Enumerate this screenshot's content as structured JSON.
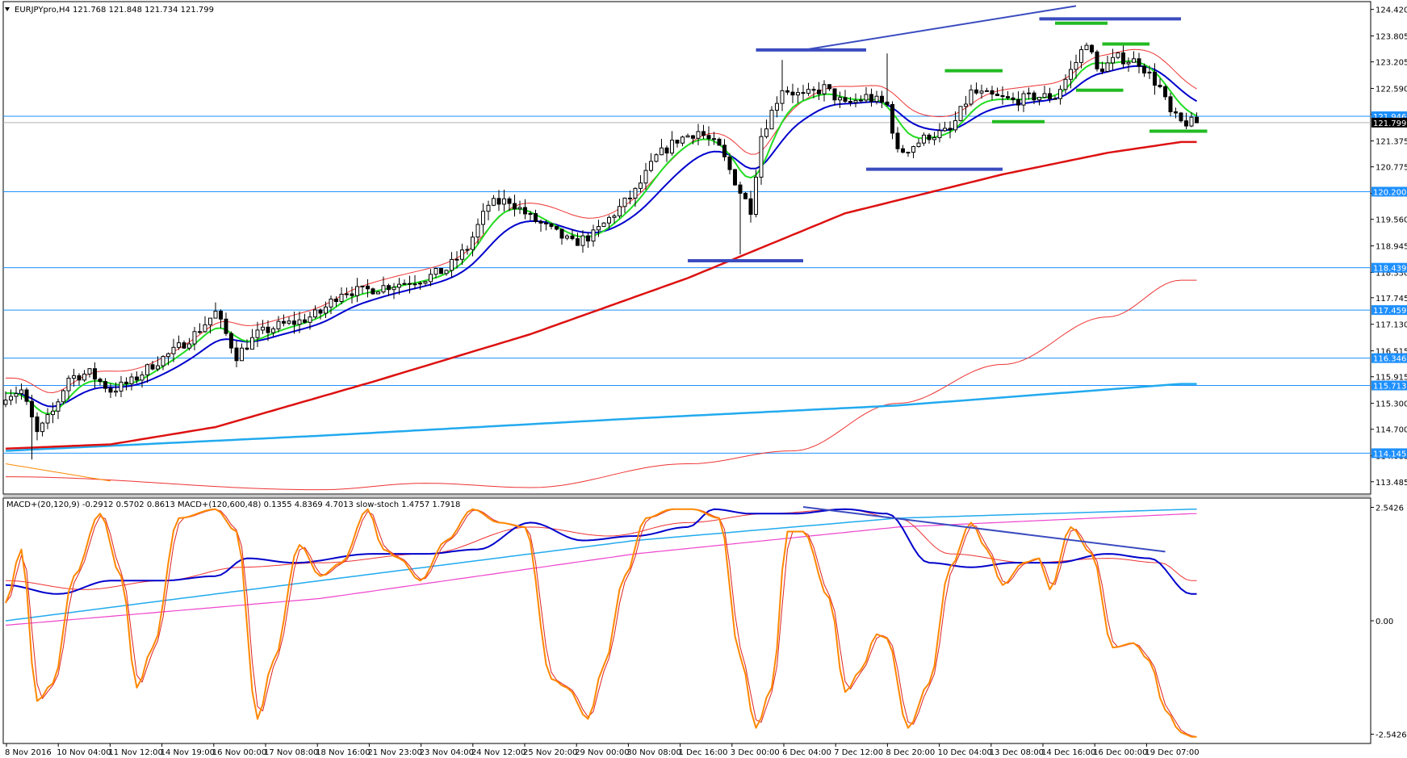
{
  "chart_data": [
    {
      "type": "candlestick",
      "title": "EURJPYpro,H4  121.768 121.848 121.734 121.799",
      "ylim": [
        113.2,
        124.6
      ],
      "y_ticks": [
        "124.420",
        "123.805",
        "123.205",
        "122.590",
        "121.990",
        "121.375",
        "120.775",
        "120.160",
        "119.560",
        "118.945",
        "118.330",
        "117.745",
        "117.130",
        "116.515",
        "115.915",
        "115.300",
        "114.700",
        "114.085",
        "113.485"
      ],
      "current_price": "121.799",
      "levels": [
        {
          "price": 121.946,
          "label": "121.946"
        },
        {
          "price": 120.2,
          "label": "120.200"
        },
        {
          "price": 118.439,
          "label": "118.439"
        },
        {
          "price": 117.459,
          "label": "117.459"
        },
        {
          "price": 116.346,
          "label": "116.346"
        },
        {
          "price": 115.713,
          "label": "115.713"
        },
        {
          "price": 114.145,
          "label": "114.145"
        }
      ],
      "anchors": [
        [
          0,
          115.5
        ],
        [
          3,
          115.6
        ],
        [
          6,
          114.6
        ],
        [
          9,
          115.1
        ],
        [
          12,
          115.9
        ],
        [
          16,
          116.0
        ],
        [
          20,
          115.6
        ],
        [
          24,
          115.8
        ],
        [
          28,
          116.2
        ],
        [
          32,
          116.5
        ],
        [
          36,
          116.9
        ],
        [
          40,
          117.4
        ],
        [
          44,
          116.4
        ],
        [
          48,
          116.9
        ],
        [
          52,
          117.1
        ],
        [
          56,
          117.2
        ],
        [
          60,
          117.4
        ],
        [
          64,
          117.9
        ],
        [
          68,
          117.9
        ],
        [
          72,
          118.0
        ],
        [
          76,
          118.1
        ],
        [
          80,
          118.2
        ],
        [
          84,
          118.4
        ],
        [
          88,
          118.9
        ],
        [
          92,
          119.9
        ],
        [
          96,
          120.0
        ],
        [
          100,
          119.6
        ],
        [
          104,
          119.3
        ],
        [
          108,
          119.0
        ],
        [
          112,
          119.2
        ],
        [
          116,
          119.7
        ],
        [
          120,
          120.2
        ],
        [
          124,
          121.0
        ],
        [
          128,
          121.4
        ],
        [
          132,
          121.6
        ],
        [
          136,
          121.2
        ],
        [
          140,
          120.2
        ],
        [
          142,
          119.8
        ],
        [
          144,
          121.5
        ],
        [
          148,
          122.6
        ],
        [
          152,
          122.4
        ],
        [
          156,
          122.6
        ],
        [
          160,
          122.2
        ],
        [
          164,
          122.4
        ],
        [
          168,
          122.2
        ],
        [
          170,
          121.1
        ],
        [
          172,
          121.2
        ],
        [
          176,
          121.5
        ],
        [
          180,
          121.6
        ],
        [
          184,
          122.5
        ],
        [
          188,
          122.4
        ],
        [
          192,
          122.3
        ],
        [
          196,
          122.4
        ],
        [
          200,
          122.4
        ],
        [
          204,
          123.2
        ],
        [
          206,
          123.7
        ],
        [
          208,
          123.0
        ],
        [
          212,
          123.3
        ],
        [
          216,
          123.2
        ],
        [
          220,
          122.6
        ],
        [
          222,
          122.0
        ],
        [
          224,
          121.8
        ]
      ],
      "annotations": [
        {
          "type": "hline",
          "price": 123.48,
          "from": 143,
          "to": 164,
          "color": "#3b4cc0"
        },
        {
          "type": "hline",
          "price": 120.72,
          "from": 164,
          "to": 190,
          "color": "#3b4cc0"
        },
        {
          "type": "hline",
          "price": 118.6,
          "from": 130,
          "to": 152,
          "color": "#3b4cc0"
        },
        {
          "type": "hline",
          "price": 124.2,
          "from": 197,
          "to": 224,
          "color": "#3b4cc0"
        },
        {
          "type": "trend",
          "from": [
            153,
            123.5
          ],
          "to": [
            204,
            124.5
          ],
          "color": "#3b4cc0"
        },
        {
          "type": "hline",
          "price": 123.0,
          "from": 179,
          "to": 190,
          "color": "#22bb22"
        },
        {
          "type": "hline",
          "price": 121.82,
          "from": 188,
          "to": 198,
          "color": "#22bb22"
        },
        {
          "type": "hline",
          "price": 124.1,
          "from": 200,
          "to": 210,
          "color": "#22bb22"
        },
        {
          "type": "hline",
          "price": 123.62,
          "from": 209,
          "to": 218,
          "color": "#22bb22"
        },
        {
          "type": "hline",
          "price": 122.55,
          "from": 204,
          "to": 213,
          "color": "#22bb22"
        },
        {
          "type": "hline",
          "price": 121.6,
          "from": 218,
          "to": 229,
          "color": "#22bb22"
        }
      ],
      "x_ticks": [
        "8 Nov 2016",
        "10 Nov 04:00",
        "11 Nov 12:00",
        "14 Nov 19:00",
        "16 Nov 00:00",
        "17 Nov 08:00",
        "18 Nov 16:00",
        "21 Nov 23:00",
        "23 Nov 04:00",
        "24 Nov 12:00",
        "25 Nov 20:00",
        "29 Nov 00:00",
        "30 Nov 08:00",
        "1 Dec 16:00",
        "3 Dec 00:00",
        "6 Dec 04:00",
        "7 Dec 12:00",
        "8 Dec 20:00",
        "10 Dec 04:00",
        "13 Dec 08:00",
        "14 Dec 16:00",
        "16 Dec 00:00",
        "19 Dec 07:00"
      ],
      "colors": {
        "ema_fast": "#22dd22",
        "ema_mid": "#0000cc",
        "ema_red": "#ee3333",
        "ema_slow": "#dd1111",
        "ema_cyan": "#22aaee",
        "level_line": "#1e90ff",
        "candle": "#000000"
      }
    },
    {
      "type": "line",
      "title": "MACD+(20,120,9) -0.2912 0.5702 0.8613  MACD+(120,600,48) 0.1355 4.8369 4.7013  slow-stoch 1.4757 1.7918",
      "y_ticks": [
        "2.5426",
        "0.00",
        "-2.5426"
      ],
      "ylim": [
        -2.75,
        2.75
      ],
      "stoch_turns": [
        [
          0,
          0.4
        ],
        [
          3,
          1.6
        ],
        [
          6,
          -1.8
        ],
        [
          9,
          -1.4
        ],
        [
          13,
          1.0
        ],
        [
          18,
          2.4
        ],
        [
          22,
          1.0
        ],
        [
          25,
          -1.5
        ],
        [
          28,
          -0.6
        ],
        [
          33,
          2.3
        ],
        [
          40,
          2.5
        ],
        [
          44,
          2.0
        ],
        [
          48,
          -2.2
        ],
        [
          51,
          -0.9
        ],
        [
          56,
          1.7
        ],
        [
          60,
          1.0
        ],
        [
          64,
          1.3
        ],
        [
          69,
          2.5
        ],
        [
          72,
          1.6
        ],
        [
          75,
          1.4
        ],
        [
          79,
          0.9
        ],
        [
          84,
          1.8
        ],
        [
          89,
          2.5
        ],
        [
          94,
          2.2
        ],
        [
          99,
          2.1
        ],
        [
          104,
          -1.3
        ],
        [
          107,
          -1.5
        ],
        [
          111,
          -2.2
        ],
        [
          114,
          -1.0
        ],
        [
          118,
          1.0
        ],
        [
          122,
          2.3
        ],
        [
          127,
          2.5
        ],
        [
          131,
          2.5
        ],
        [
          136,
          2.3
        ],
        [
          140,
          -0.8
        ],
        [
          143,
          -2.4
        ],
        [
          146,
          -1.5
        ],
        [
          149,
          2.0
        ],
        [
          152,
          2.0
        ],
        [
          157,
          0.5
        ],
        [
          160,
          -1.6
        ],
        [
          163,
          -1.1
        ],
        [
          166,
          -0.3
        ],
        [
          168,
          -0.4
        ],
        [
          172,
          -2.4
        ],
        [
          176,
          -1.4
        ],
        [
          180,
          1.2
        ],
        [
          184,
          2.2
        ],
        [
          187,
          1.6
        ],
        [
          190,
          0.8
        ],
        [
          194,
          1.3
        ],
        [
          197,
          1.4
        ],
        [
          199,
          0.7
        ],
        [
          203,
          2.1
        ],
        [
          207,
          1.5
        ],
        [
          211,
          -0.6
        ],
        [
          215,
          -0.5
        ],
        [
          218,
          -0.9
        ],
        [
          221,
          -2.0
        ],
        [
          224,
          -2.5
        ],
        [
          226,
          -2.6
        ]
      ],
      "macd_main_turns": [
        [
          0,
          0.8
        ],
        [
          10,
          0.6
        ],
        [
          20,
          0.9
        ],
        [
          30,
          0.9
        ],
        [
          40,
          1.0
        ],
        [
          46,
          1.4
        ],
        [
          55,
          1.3
        ],
        [
          70,
          1.5
        ],
        [
          80,
          1.5
        ],
        [
          90,
          1.6
        ],
        [
          100,
          2.2
        ],
        [
          110,
          1.8
        ],
        [
          120,
          1.9
        ],
        [
          130,
          2.1
        ],
        [
          135,
          2.5
        ],
        [
          142,
          2.4
        ],
        [
          150,
          2.4
        ],
        [
          160,
          2.5
        ],
        [
          168,
          2.4
        ],
        [
          176,
          1.3
        ],
        [
          184,
          1.2
        ],
        [
          192,
          1.3
        ],
        [
          200,
          1.3
        ],
        [
          210,
          1.5
        ],
        [
          218,
          1.4
        ],
        [
          226,
          0.6
        ]
      ],
      "macd_signal_turns": [
        [
          0,
          0.9
        ],
        [
          15,
          0.7
        ],
        [
          30,
          0.9
        ],
        [
          45,
          1.2
        ],
        [
          60,
          1.3
        ],
        [
          80,
          1.5
        ],
        [
          100,
          2.1
        ],
        [
          115,
          1.9
        ],
        [
          130,
          2.2
        ],
        [
          145,
          2.4
        ],
        [
          160,
          2.5
        ],
        [
          170,
          2.3
        ],
        [
          180,
          1.5
        ],
        [
          195,
          1.3
        ],
        [
          210,
          1.4
        ],
        [
          220,
          1.3
        ],
        [
          226,
          0.9
        ]
      ],
      "long_macd_turns": [
        [
          0,
          0.0
        ],
        [
          60,
          0.9
        ],
        [
          120,
          1.8
        ],
        [
          170,
          2.3
        ],
        [
          226,
          2.5
        ]
      ],
      "long_signal_turns": [
        [
          0,
          -0.1
        ],
        [
          60,
          0.5
        ],
        [
          120,
          1.5
        ],
        [
          170,
          2.1
        ],
        [
          226,
          2.4
        ]
      ],
      "annotations": [
        {
          "type": "trend",
          "from": [
            152,
            2.55
          ],
          "to": [
            221,
            1.55
          ],
          "color": "#3b4cc0"
        }
      ],
      "colors": {
        "stoch": "#ff8800",
        "stoch_signal": "#dd2222",
        "macd_main": "#0000cc",
        "macd_signal": "#ee3333",
        "long_macd": "#22aaee",
        "long_signal": "#ee44cc"
      }
    }
  ]
}
